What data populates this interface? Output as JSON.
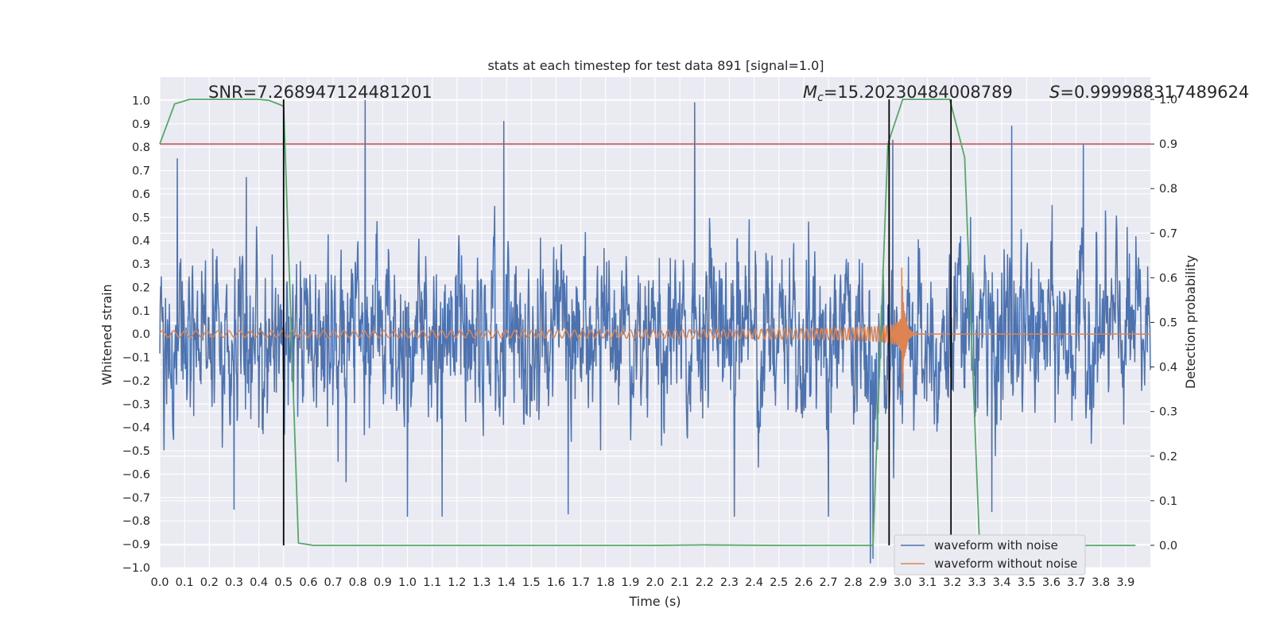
{
  "chart_data": {
    "type": "line",
    "title": "stats at each timestep for test data 891 [signal=1.0]",
    "xlabel": "Time (s)",
    "ylabel": "Whitened strain",
    "y2label": "Detection probability",
    "xlim": [
      0.0,
      4.0
    ],
    "ylim": [
      -1.0,
      1.1
    ],
    "y2lim": [
      -0.05,
      1.05
    ],
    "xticks": [
      0.0,
      0.1,
      0.2,
      0.3,
      0.4,
      0.5,
      0.6,
      0.7,
      0.8,
      0.9,
      1.0,
      1.1,
      1.2,
      1.3,
      1.4,
      1.5,
      1.6,
      1.7,
      1.8,
      1.9,
      2.0,
      2.1,
      2.2,
      2.3,
      2.4,
      2.5,
      2.6,
      2.7,
      2.8,
      2.9,
      3.0,
      3.1,
      3.2,
      3.3,
      3.4,
      3.5,
      3.6,
      3.7,
      3.8,
      3.9
    ],
    "xtick_labels": [
      "0.0",
      "0.1",
      "0.2",
      "0.3",
      "0.4",
      "0.5",
      "0.6",
      "0.7",
      "0.8",
      "0.9",
      "1.0",
      "1.1",
      "1.2",
      "1.3",
      "1.4",
      "1.5",
      "1.6",
      "1.7",
      "1.8",
      "1.9",
      "2.0",
      "2.1",
      "2.2",
      "2.3",
      "2.4",
      "2.5",
      "2.6",
      "2.7",
      "2.8",
      "2.9",
      "3.0",
      "3.1",
      "3.2",
      "3.3",
      "3.4",
      "3.5",
      "3.6",
      "3.7",
      "3.8",
      "3.9"
    ],
    "yticks": [
      1.0,
      0.9,
      0.8,
      0.7,
      0.6,
      0.5,
      0.4,
      0.3,
      0.2,
      0.1,
      0.0,
      -0.1,
      -0.2,
      -0.3,
      -0.4,
      -0.5,
      -0.6,
      -0.7,
      -0.8,
      -0.9,
      -1.0
    ],
    "ytick_labels": [
      "1.0",
      "0.9",
      "0.8",
      "0.7",
      "0.6",
      "0.5",
      "0.4",
      "0.3",
      "0.2",
      "0.1",
      "0.0",
      "−0.1",
      "−0.2",
      "−0.3",
      "−0.4",
      "−0.5",
      "−0.6",
      "−0.7",
      "−0.8",
      "−0.9",
      "−1.0"
    ],
    "y2ticks": [
      1.0,
      0.9,
      0.8,
      0.7,
      0.6,
      0.5,
      0.4,
      0.3,
      0.2,
      0.1,
      0.0
    ],
    "y2tick_labels": [
      "1.0",
      "0.9",
      "0.8",
      "0.7",
      "0.6",
      "0.5",
      "0.4",
      "0.3",
      "0.2",
      "0.1",
      "0.0"
    ],
    "grid": true,
    "legend_position": "bottom-right",
    "annotations": {
      "snr": "SNR=7.268947124481201",
      "mc_symbol": "M",
      "mc_sub": "c",
      "mc_value": "=15.20230484008789",
      "s_symbol": "S",
      "s_value": "=0.999988317489624"
    },
    "noisy_series": {
      "name": "waveform with noise",
      "color": "#4c72b0",
      "typical_range": [
        -0.45,
        0.45
      ],
      "spikes": [
        {
          "x": 0.83,
          "y": 1.0
        },
        {
          "x": 1.39,
          "y": 0.91
        },
        {
          "x": 2.16,
          "y": 0.99
        },
        {
          "x": 2.96,
          "y": 0.83
        },
        {
          "x": 3.44,
          "y": 0.89
        },
        {
          "x": 3.73,
          "y": 0.81
        },
        {
          "x": 0.07,
          "y": 0.75
        },
        {
          "x": 0.35,
          "y": 0.67
        },
        {
          "x": 2.87,
          "y": -0.98
        },
        {
          "x": 2.88,
          "y": -0.96
        },
        {
          "x": 1.0,
          "y": -0.78
        },
        {
          "x": 1.14,
          "y": -0.78
        },
        {
          "x": 1.65,
          "y": -0.77
        },
        {
          "x": 2.32,
          "y": -0.78
        },
        {
          "x": 2.7,
          "y": -0.78
        },
        {
          "x": 0.3,
          "y": -0.75
        },
        {
          "x": 3.36,
          "y": -0.76
        }
      ]
    },
    "clean_series": {
      "name": "waveform without noise",
      "color": "#dd8452",
      "merger_time": 2.995,
      "initial_amplitude": 0.012,
      "peak_amplitude": 0.31,
      "initial_frequency_hz": 22
    },
    "threshold": {
      "y2": 0.9,
      "color": "#c44e52"
    },
    "detection_probability": {
      "color": "#55a868",
      "x": [
        0.0,
        0.06,
        0.12,
        0.2,
        0.3,
        0.4,
        0.44,
        0.5,
        0.56,
        0.62,
        0.7,
        1.0,
        1.5,
        2.0,
        2.2,
        2.5,
        2.8,
        2.88,
        2.94,
        3.0,
        3.06,
        3.12,
        3.19,
        3.25,
        3.31,
        3.37,
        3.5,
        3.7,
        3.94
      ],
      "y": [
        0.9,
        0.99,
        1.0,
        1.0,
        1.0,
        1.0,
        0.998,
        0.985,
        0.005,
        0.0,
        0.0,
        0.0,
        0.0,
        0.0,
        0.001,
        0.0,
        0.0,
        0.0,
        0.9,
        1.0,
        1.0,
        1.0,
        1.0,
        0.87,
        0.0,
        0.0,
        0.0,
        0.0,
        0.0
      ]
    },
    "vertical_lines": [
      {
        "x": 0.5,
        "y2_from": 0.0,
        "y2_to": 1.0
      },
      {
        "x": 2.945,
        "y2_from": 0.0,
        "y2_to": 1.0
      },
      {
        "x": 3.195,
        "y2_from": 0.0,
        "y2_to": 1.0
      }
    ],
    "extra_white_lines": [
      {
        "y": 0.235
      },
      {
        "y": 0.045
      },
      {
        "y": -0.145
      }
    ],
    "legend": [
      "waveform with noise",
      "waveform without noise"
    ]
  }
}
